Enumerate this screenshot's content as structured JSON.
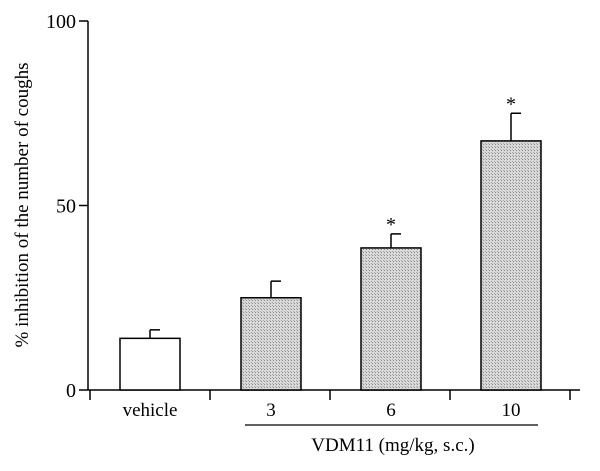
{
  "chart_data": {
    "type": "bar",
    "ylabel": "% inhibition of the number of coughs",
    "xlabel": "VDM11 (mg/kg, s.c.)",
    "categories": [
      "vehicle",
      "3",
      "6",
      "10"
    ],
    "values": [
      14,
      25,
      38.5,
      67.5
    ],
    "errors": [
      2.3,
      4.5,
      3.8,
      7.5
    ],
    "significance": [
      "",
      "",
      "*",
      "*"
    ],
    "fill": [
      "white",
      "hatched",
      "hatched",
      "hatched"
    ],
    "ylim": [
      0,
      100
    ],
    "yticks": [
      "0",
      "50",
      "100"
    ],
    "xlabel_spans": [
      "3",
      "10"
    ]
  },
  "colors": {
    "axis": "#000000",
    "bar_empty": "#ffffff",
    "bar_hatched": "#c8c8c8"
  }
}
